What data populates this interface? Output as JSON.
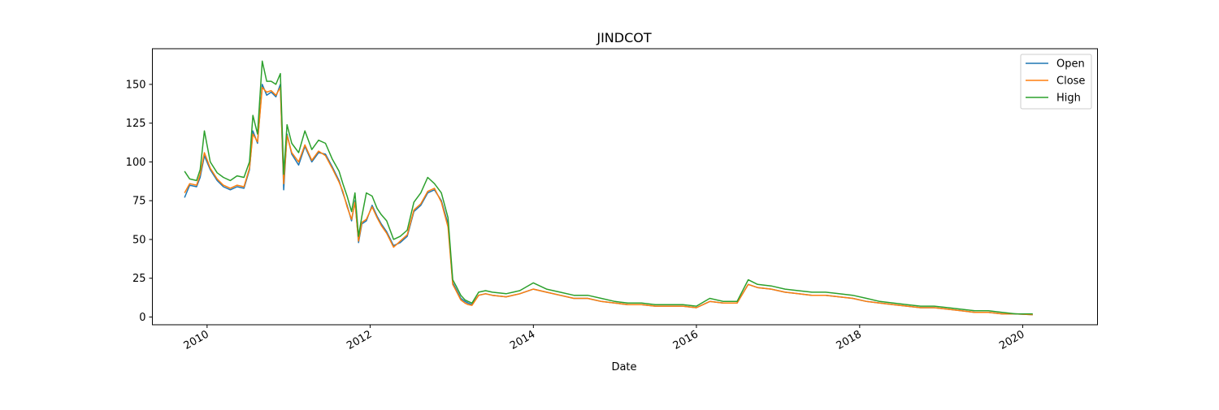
{
  "chart_data": {
    "type": "line",
    "title": "JINDCOT",
    "xlabel": "Date",
    "ylabel": "",
    "x_range": [
      "2009-05-01",
      "2020-12-01"
    ],
    "ylim": [
      -5,
      173
    ],
    "x_ticks": [
      "2010",
      "2012",
      "2014",
      "2016",
      "2018",
      "2020"
    ],
    "y_ticks": [
      0,
      25,
      50,
      75,
      100,
      125,
      150
    ],
    "grid": false,
    "legend": "top-right",
    "colors": {
      "Open": "#1f77b4",
      "Close": "#ff7f0e",
      "High": "#2ca02c"
    },
    "x": [
      "2009-09-22",
      "2009-10-15",
      "2009-11-15",
      "2009-12-01",
      "2009-12-20",
      "2010-01-15",
      "2010-02-15",
      "2010-03-15",
      "2010-04-15",
      "2010-05-15",
      "2010-06-15",
      "2010-07-10",
      "2010-07-25",
      "2010-08-15",
      "2010-09-05",
      "2010-09-25",
      "2010-10-15",
      "2010-11-05",
      "2010-11-25",
      "2010-12-10",
      "2010-12-25",
      "2011-01-15",
      "2011-02-15",
      "2011-03-15",
      "2011-04-15",
      "2011-05-15",
      "2011-06-15",
      "2011-07-15",
      "2011-08-15",
      "2011-09-01",
      "2011-09-20",
      "2011-10-10",
      "2011-10-25",
      "2011-11-10",
      "2011-11-25",
      "2011-12-15",
      "2012-01-10",
      "2012-02-01",
      "2012-02-20",
      "2012-03-15",
      "2012-04-15",
      "2012-05-15",
      "2012-06-15",
      "2012-07-15",
      "2012-08-15",
      "2012-09-15",
      "2012-10-15",
      "2012-11-15",
      "2012-12-15",
      "2013-01-05",
      "2013-01-20",
      "2013-02-10",
      "2013-03-01",
      "2013-03-15",
      "2013-04-01",
      "2013-05-01",
      "2013-06-01",
      "2013-07-01",
      "2013-09-01",
      "2013-11-01",
      "2014-01-01",
      "2014-03-01",
      "2014-05-01",
      "2014-07-01",
      "2014-09-01",
      "2014-11-01",
      "2015-01-01",
      "2015-03-01",
      "2015-05-01",
      "2015-07-01",
      "2015-09-01",
      "2015-11-01",
      "2016-01-01",
      "2016-03-01",
      "2016-05-01",
      "2016-07-01",
      "2016-08-20",
      "2016-10-01",
      "2016-12-01",
      "2017-02-01",
      "2017-04-01",
      "2017-06-01",
      "2017-08-01",
      "2017-10-01",
      "2017-12-01",
      "2018-02-01",
      "2018-04-01",
      "2018-06-01",
      "2018-08-01",
      "2018-10-01",
      "2018-12-01",
      "2019-02-01",
      "2019-04-01",
      "2019-06-01",
      "2019-08-01",
      "2019-10-01",
      "2019-12-01",
      "2020-02-15"
    ],
    "series": [
      {
        "name": "Open",
        "values": [
          77,
          85,
          84,
          90,
          104,
          95,
          88,
          84,
          82,
          84,
          83,
          95,
          120,
          112,
          150,
          143,
          145,
          142,
          150,
          82,
          118,
          105,
          98,
          110,
          100,
          106,
          105,
          97,
          88,
          80,
          72,
          62,
          75,
          48,
          60,
          62,
          72,
          65,
          60,
          55,
          46,
          48,
          52,
          68,
          72,
          80,
          82,
          75,
          60,
          22,
          18,
          12,
          10,
          9,
          8,
          14,
          15,
          14,
          13,
          15,
          18,
          16,
          14,
          12,
          12,
          10,
          9,
          8,
          8,
          7,
          7,
          7,
          6,
          10,
          9,
          9,
          21,
          19,
          18,
          16,
          15,
          14,
          14,
          13,
          12,
          10,
          9,
          8,
          7,
          6,
          6,
          5,
          4,
          3,
          3,
          2,
          2,
          1.5
        ]
      },
      {
        "name": "Close",
        "values": [
          80,
          86,
          85,
          92,
          106,
          96,
          89,
          85,
          83,
          85,
          84,
          96,
          118,
          113,
          148,
          145,
          146,
          143,
          148,
          86,
          117,
          106,
          100,
          111,
          101,
          107,
          104,
          96,
          87,
          81,
          71,
          63,
          74,
          49,
          61,
          63,
          71,
          64,
          59,
          54,
          45,
          49,
          53,
          69,
          73,
          81,
          83,
          74,
          58,
          21,
          17,
          11,
          9,
          8,
          7.5,
          14,
          15,
          14,
          13,
          15,
          18,
          16,
          14,
          12,
          12,
          10,
          9,
          8,
          8,
          7,
          7,
          7,
          6,
          10,
          9,
          9,
          21,
          19,
          18,
          16,
          15,
          14,
          14,
          13,
          12,
          10,
          9,
          8,
          7,
          6,
          6,
          5,
          4,
          3,
          3,
          2,
          2,
          1.5
        ]
      },
      {
        "name": "High",
        "values": [
          94,
          89,
          88,
          95,
          120,
          100,
          93,
          90,
          88,
          91,
          90,
          100,
          130,
          118,
          165,
          152,
          152,
          150,
          157,
          92,
          124,
          112,
          106,
          120,
          108,
          114,
          112,
          102,
          94,
          86,
          78,
          68,
          80,
          52,
          65,
          80,
          78,
          70,
          66,
          62,
          50,
          52,
          56,
          74,
          80,
          90,
          86,
          80,
          64,
          24,
          20,
          14,
          11,
          10,
          9,
          16,
          17,
          16,
          15,
          17,
          22,
          18,
          16,
          14,
          14,
          12,
          10,
          9,
          9,
          8,
          8,
          8,
          7,
          12,
          10,
          10,
          24,
          21,
          20,
          18,
          17,
          16,
          16,
          15,
          14,
          12,
          10,
          9,
          8,
          7,
          7,
          6,
          5,
          4,
          4,
          3,
          2,
          2
        ]
      }
    ]
  }
}
